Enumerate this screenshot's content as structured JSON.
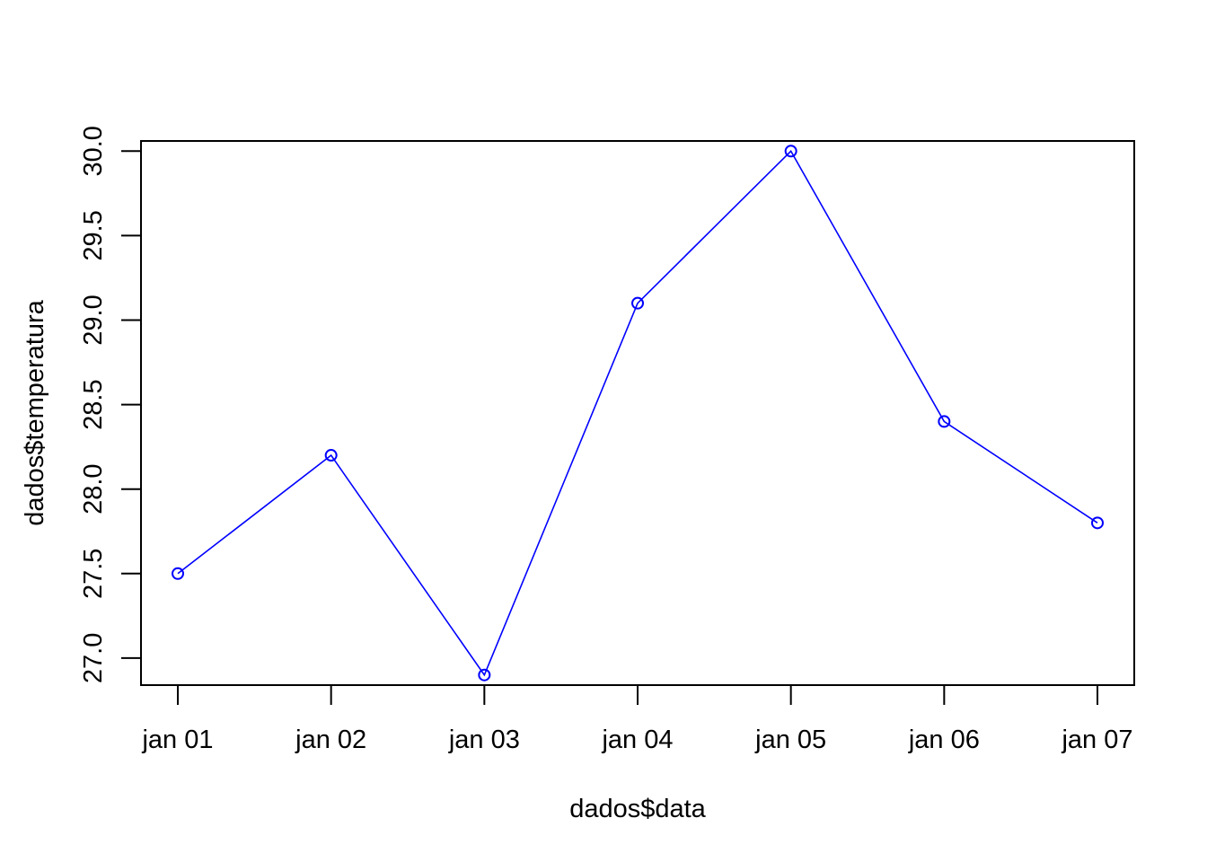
{
  "chart_data": {
    "type": "line",
    "title": "",
    "xlabel": "dados$data",
    "ylabel": "dados$temperatura",
    "categories": [
      "jan 01",
      "jan 02",
      "jan 03",
      "jan 04",
      "jan 05",
      "jan 06",
      "jan 07"
    ],
    "series": [
      {
        "values": [
          27.5,
          28.2,
          26.9,
          29.1,
          30.0,
          28.4,
          27.8
        ],
        "color": "#0000ff",
        "marker": "open-circle"
      }
    ],
    "yticks": [
      "27.0",
      "27.5",
      "28.0",
      "28.5",
      "29.0",
      "29.5",
      "30.0"
    ],
    "ylim": [
      26.84,
      30.06
    ],
    "grid": false,
    "legend": "none"
  }
}
